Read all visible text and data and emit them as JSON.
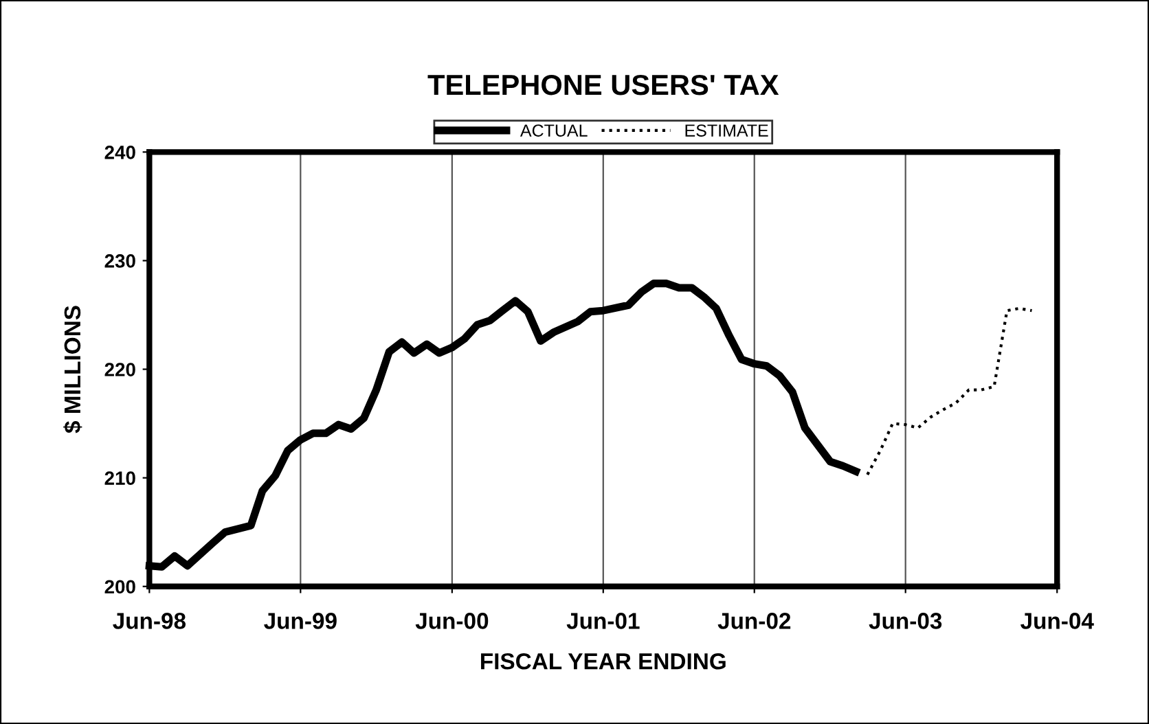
{
  "chart_data": {
    "type": "line",
    "title": "TELEPHONE USERS' TAX",
    "xlabel": "FISCAL YEAR ENDING",
    "ylabel": "$ MILLIONS",
    "series": [
      {
        "name": "ACTUAL",
        "color": "#000000",
        "line_style": "solid",
        "x": [
          "1998-06",
          "1998-07",
          "1998-08",
          "1998-09",
          "1998-11",
          "1998-12",
          "1999-02",
          "1999-03",
          "1999-04",
          "1999-05",
          "1999-06",
          "1999-07",
          "1999-08",
          "1999-09",
          "1999-10",
          "1999-11",
          "1999-12",
          "2000-01",
          "2000-02",
          "2000-03",
          "2000-04",
          "2000-05",
          "2000-06",
          "2000-07",
          "2000-08",
          "2000-09",
          "2000-10",
          "2000-11",
          "2000-12",
          "2001-01",
          "2001-02",
          "2001-04",
          "2001-05",
          "2001-06",
          "2001-08",
          "2001-09",
          "2001-10",
          "2001-11",
          "2001-12",
          "2002-01",
          "2002-02",
          "2002-03",
          "2002-04",
          "2002-05",
          "2002-06",
          "2002-07",
          "2002-08",
          "2002-09",
          "2002-10",
          "2002-12",
          "2003-01",
          "2003-02"
        ],
        "values": [
          201.9,
          201.8,
          202.8,
          201.9,
          204,
          205,
          205.6,
          208.8,
          210.2,
          212.5,
          213.5,
          214.1,
          214.1,
          214.9,
          214.5,
          215.5,
          218.1,
          221.6,
          222.5,
          221.5,
          222.3,
          221.5,
          222,
          222.8,
          224.1,
          224.5,
          225.4,
          226.3,
          225.3,
          222.6,
          223.4,
          224.4,
          225.3,
          225.4,
          225.9,
          227.1,
          227.9,
          227.9,
          227.5,
          227.5,
          226.6,
          225.6,
          223.1,
          220.9,
          220.5,
          220.3,
          219.4,
          217.9,
          214.6,
          211.5,
          211.1,
          210.6
        ]
      },
      {
        "name": "ESTIMATE",
        "color": "#000000",
        "line_style": "dotted",
        "x": [
          "2003-03",
          "2003-04",
          "2003-05",
          "2003-06",
          "2003-07",
          "2003-08",
          "2003-09",
          "2003-10",
          "2003-11",
          "2003-12",
          "2004-01",
          "2004-02",
          "2004-03",
          "2004-04"
        ],
        "values": [
          210.3,
          212.5,
          215,
          214.9,
          214.6,
          215.6,
          216.3,
          216.9,
          218.1,
          218.1,
          218.4,
          225.4,
          225.6,
          225.4
        ]
      }
    ],
    "xlim": [
      "1998-06",
      "2004-06"
    ],
    "xticks": [
      {
        "value": "1998-06",
        "label": "Jun-98"
      },
      {
        "value": "1999-06",
        "label": "Jun-99"
      },
      {
        "value": "2000-06",
        "label": "Jun-00"
      },
      {
        "value": "2001-06",
        "label": "Jun-01"
      },
      {
        "value": "2002-06",
        "label": "Jun-02"
      },
      {
        "value": "2003-06",
        "label": "Jun-03"
      },
      {
        "value": "2004-06",
        "label": "Jun-04"
      }
    ],
    "ylim": [
      200,
      240
    ],
    "yticks": [
      200,
      210,
      220,
      230,
      240
    ],
    "grid": "x",
    "legend": "top",
    "marker": "none"
  }
}
